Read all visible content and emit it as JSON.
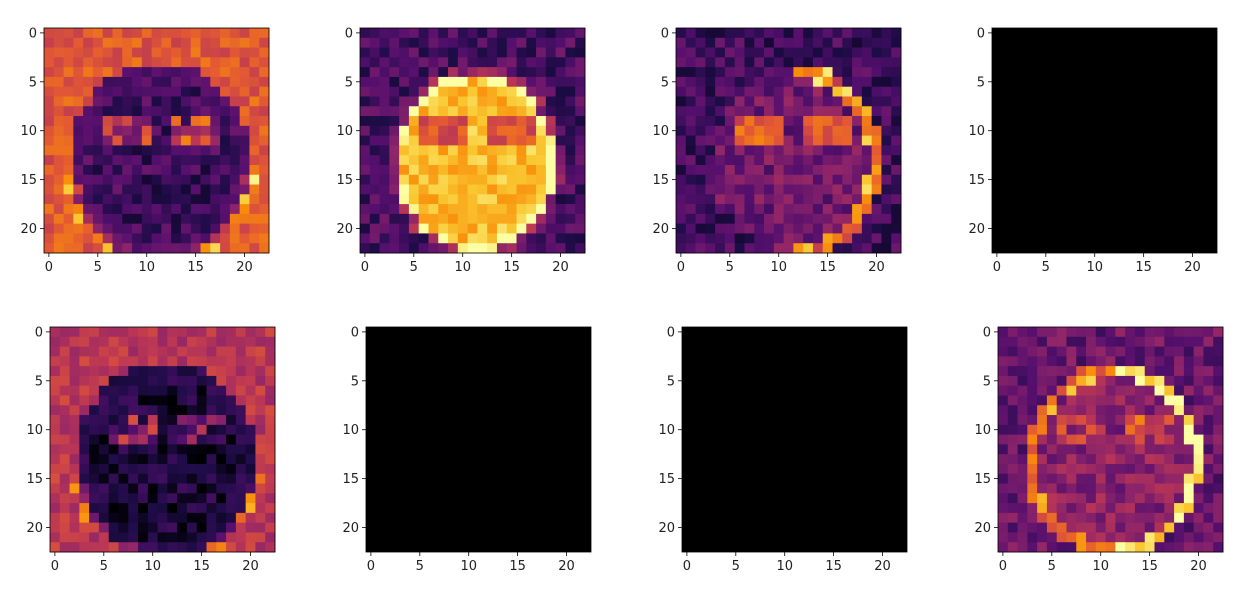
{
  "figure": {
    "rows": 2,
    "cols": 4,
    "colormap": "inferno",
    "colors": {
      "background": "#ffffff",
      "axis": "#000000"
    }
  },
  "chart_data": [
    {
      "type": "heatmap",
      "panel": "row1-col1",
      "grid_size": 23,
      "title": "",
      "xlabel": "",
      "ylabel": "",
      "x_ticks": [
        "0",
        "5",
        "10",
        "15",
        "20"
      ],
      "y_ticks": [
        "0",
        "5",
        "10",
        "15",
        "20"
      ],
      "pattern": "background-high-face-low",
      "base_level": 0.62,
      "face_level": 0.2,
      "constant": false,
      "seed": 11
    },
    {
      "type": "heatmap",
      "panel": "row1-col2",
      "grid_size": 23,
      "title": "",
      "xlabel": "",
      "ylabel": "",
      "x_ticks": [
        "0",
        "5",
        "10",
        "15",
        "20"
      ],
      "y_ticks": [
        "0",
        "5",
        "10",
        "15",
        "20"
      ],
      "pattern": "face-bright",
      "base_level": 0.22,
      "face_level": 0.85,
      "constant": false,
      "seed": 23
    },
    {
      "type": "heatmap",
      "panel": "row1-col3",
      "grid_size": 23,
      "title": "",
      "xlabel": "",
      "ylabel": "",
      "x_ticks": [
        "0",
        "5",
        "10",
        "15",
        "20"
      ],
      "y_ticks": [
        "0",
        "5",
        "10",
        "15",
        "20"
      ],
      "pattern": "edge-right",
      "base_level": 0.2,
      "face_level": 0.32,
      "constant": false,
      "seed": 37
    },
    {
      "type": "heatmap",
      "panel": "row1-col4",
      "grid_size": 23,
      "title": "",
      "xlabel": "",
      "ylabel": "",
      "x_ticks": [
        "0",
        "5",
        "10",
        "15",
        "20"
      ],
      "y_ticks": [
        "0",
        "5",
        "10",
        "15",
        "20"
      ],
      "pattern": "constant",
      "base_level": 0.0,
      "face_level": 0.0,
      "constant": true,
      "seed": 1
    },
    {
      "type": "heatmap",
      "panel": "row2-col1",
      "grid_size": 23,
      "title": "",
      "xlabel": "",
      "ylabel": "",
      "x_ticks": [
        "0",
        "5",
        "10",
        "15",
        "20"
      ],
      "y_ticks": [
        "0",
        "5",
        "10",
        "15",
        "20"
      ],
      "pattern": "background-high-face-low",
      "base_level": 0.5,
      "face_level": 0.1,
      "constant": false,
      "seed": 53
    },
    {
      "type": "heatmap",
      "panel": "row2-col2",
      "grid_size": 23,
      "title": "",
      "xlabel": "",
      "ylabel": "",
      "x_ticks": [
        "0",
        "5",
        "10",
        "15",
        "20"
      ],
      "y_ticks": [
        "0",
        "5",
        "10",
        "15",
        "20"
      ],
      "pattern": "constant",
      "base_level": 0.0,
      "face_level": 0.0,
      "constant": true,
      "seed": 2
    },
    {
      "type": "heatmap",
      "panel": "row2-col3",
      "grid_size": 23,
      "title": "",
      "xlabel": "",
      "ylabel": "",
      "x_ticks": [
        "0",
        "5",
        "10",
        "15",
        "20"
      ],
      "y_ticks": [
        "0",
        "5",
        "10",
        "15",
        "20"
      ],
      "pattern": "constant",
      "base_level": 0.0,
      "face_level": 0.0,
      "constant": true,
      "seed": 3
    },
    {
      "type": "heatmap",
      "panel": "row2-col4",
      "grid_size": 23,
      "title": "",
      "xlabel": "",
      "ylabel": "",
      "x_ticks": [
        "0",
        "5",
        "10",
        "15",
        "20"
      ],
      "y_ticks": [
        "0",
        "5",
        "10",
        "15",
        "20"
      ],
      "pattern": "edge-ring",
      "base_level": 0.3,
      "face_level": 0.38,
      "constant": false,
      "seed": 71
    }
  ]
}
